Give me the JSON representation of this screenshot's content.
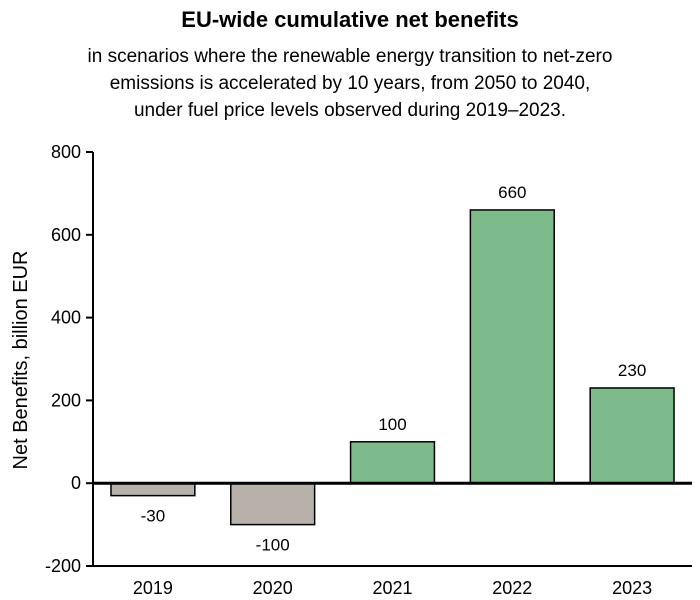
{
  "chart_data": {
    "type": "bar",
    "title": "EU-wide cumulative net benefits",
    "subtitle_lines": [
      "in scenarios where the renewable energy transition to net-zero",
      "emissions is accelerated by 10 years, from 2050 to 2040,",
      "under fuel price levels observed during 2019–2023."
    ],
    "xlabel": "",
    "ylabel": "Net Benefits, billion EUR",
    "categories": [
      "2019",
      "2020",
      "2021",
      "2022",
      "2023"
    ],
    "values": [
      -30,
      -100,
      100,
      660,
      230
    ],
    "data_labels": [
      "-30",
      "-100",
      "100",
      "660",
      "230"
    ],
    "ylim": [
      -200,
      800
    ],
    "yticks": [
      -200,
      0,
      200,
      400,
      600,
      800
    ],
    "ytick_labels": [
      "-200",
      "0",
      "200",
      "400",
      "600",
      "800"
    ],
    "grid": false,
    "legend": "none",
    "colors": {
      "positive": "#7dbb8a",
      "negative": "#b8b1aa",
      "edge": "#000000"
    }
  }
}
